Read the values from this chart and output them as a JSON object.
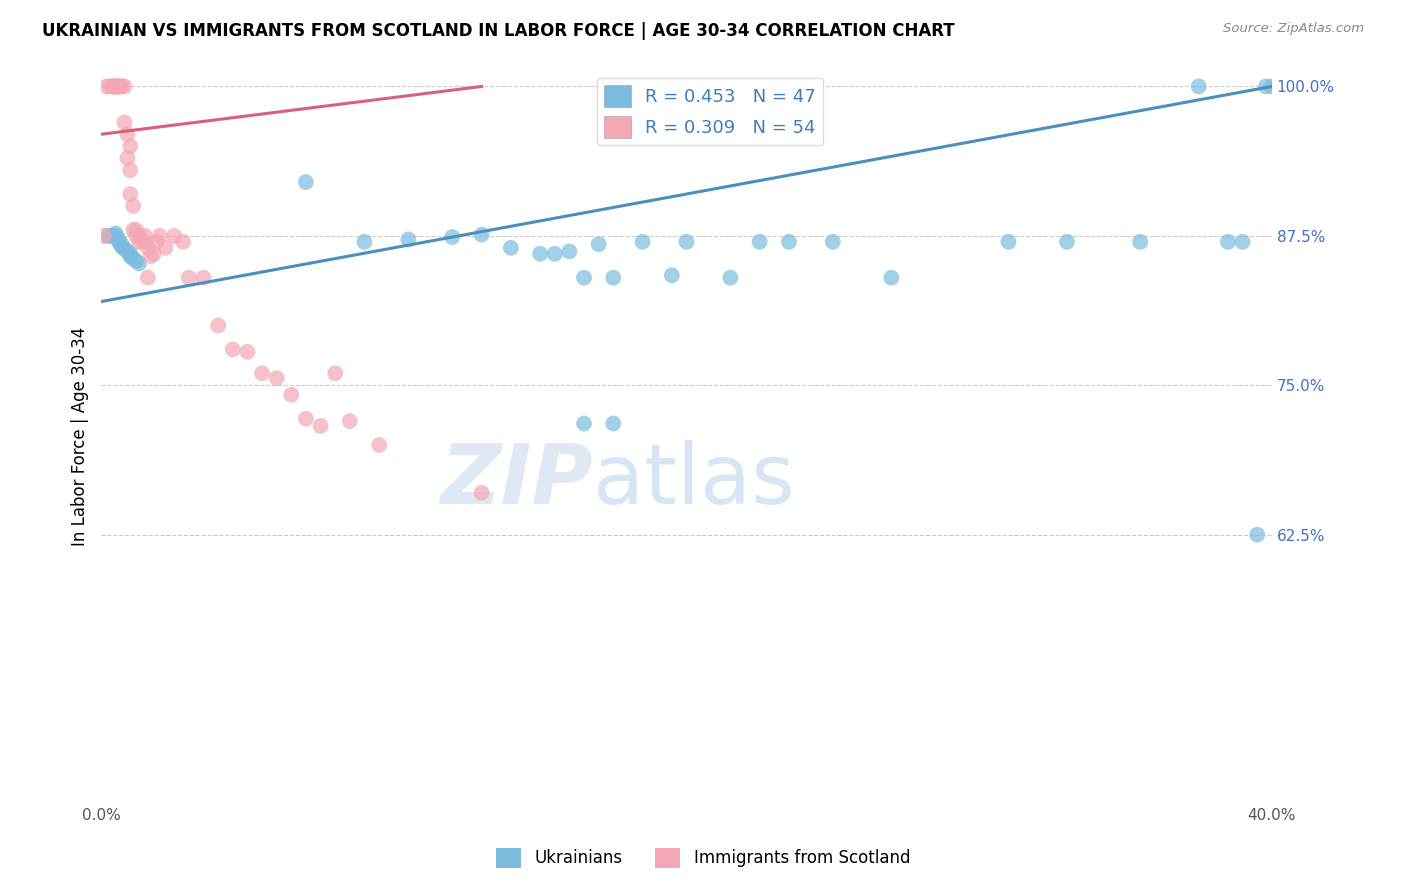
{
  "title": "UKRAINIAN VS IMMIGRANTS FROM SCOTLAND IN LABOR FORCE | AGE 30-34 CORRELATION CHART",
  "source": "Source: ZipAtlas.com",
  "ylabel": "In Labor Force | Age 30-34",
  "xmin": 0.0,
  "xmax": 0.4,
  "ymin": 0.4,
  "ymax": 1.015,
  "ytick_vals": [
    0.625,
    0.75,
    0.875,
    1.0
  ],
  "ytick_labels": [
    "62.5%",
    "75.0%",
    "87.5%",
    "100.0%"
  ],
  "xtick_vals": [
    0.0,
    0.05,
    0.1,
    0.15,
    0.2,
    0.25,
    0.3,
    0.35,
    0.4
  ],
  "xtick_labels": [
    "0.0%",
    "",
    "",
    "",
    "",
    "",
    "",
    "",
    "40.0%"
  ],
  "legend_R_blue": "R = 0.453",
  "legend_N_blue": "N = 47",
  "legend_R_pink": "R = 0.309",
  "legend_N_pink": "N = 54",
  "blue_color": "#7BBCDE",
  "pink_color": "#F4A7B5",
  "blue_line_color": "#4C8FBE",
  "pink_line_color": "#D9607A",
  "watermark": "ZIPatlas",
  "blue_x": [
    0.002,
    0.003,
    0.004,
    0.005,
    0.005,
    0.006,
    0.006,
    0.007,
    0.007,
    0.008,
    0.009,
    0.01,
    0.01,
    0.011,
    0.012,
    0.013,
    0.07,
    0.09,
    0.105,
    0.12,
    0.13,
    0.14,
    0.15,
    0.155,
    0.16,
    0.165,
    0.17,
    0.175,
    0.185,
    0.195,
    0.2,
    0.215,
    0.225,
    0.235,
    0.25,
    0.27,
    0.165,
    0.175,
    0.31,
    0.33,
    0.355,
    0.375,
    0.385,
    0.39,
    0.395,
    0.398,
    0.4
  ],
  "blue_y": [
    0.875,
    0.875,
    0.875,
    0.877,
    0.875,
    0.872,
    0.87,
    0.868,
    0.866,
    0.864,
    0.862,
    0.86,
    0.858,
    0.856,
    0.854,
    0.852,
    0.92,
    0.87,
    0.872,
    0.874,
    0.876,
    0.865,
    0.86,
    0.86,
    0.862,
    0.84,
    0.868,
    0.84,
    0.87,
    0.842,
    0.87,
    0.84,
    0.87,
    0.87,
    0.87,
    0.84,
    0.718,
    0.718,
    0.87,
    0.87,
    0.87,
    1.0,
    0.87,
    0.87,
    0.625,
    1.0,
    1.0
  ],
  "pink_x": [
    0.001,
    0.002,
    0.003,
    0.004,
    0.004,
    0.005,
    0.005,
    0.005,
    0.005,
    0.005,
    0.005,
    0.006,
    0.006,
    0.007,
    0.007,
    0.008,
    0.008,
    0.009,
    0.009,
    0.01,
    0.01,
    0.01,
    0.011,
    0.011,
    0.012,
    0.012,
    0.013,
    0.013,
    0.014,
    0.015,
    0.015,
    0.016,
    0.016,
    0.017,
    0.018,
    0.019,
    0.02,
    0.022,
    0.025,
    0.028,
    0.03,
    0.035,
    0.04,
    0.045,
    0.05,
    0.055,
    0.06,
    0.065,
    0.07,
    0.075,
    0.08,
    0.085,
    0.095,
    0.13
  ],
  "pink_y": [
    0.875,
    1.0,
    1.0,
    1.0,
    1.0,
    1.0,
    1.0,
    1.0,
    1.0,
    1.0,
    1.0,
    1.0,
    1.0,
    1.0,
    1.0,
    1.0,
    0.97,
    0.96,
    0.94,
    0.95,
    0.93,
    0.91,
    0.9,
    0.88,
    0.88,
    0.875,
    0.87,
    0.875,
    0.87,
    0.87,
    0.875,
    0.865,
    0.84,
    0.858,
    0.86,
    0.87,
    0.875,
    0.865,
    0.875,
    0.87,
    0.84,
    0.84,
    0.8,
    0.78,
    0.778,
    0.76,
    0.756,
    0.742,
    0.722,
    0.716,
    0.76,
    0.72,
    0.7,
    0.66
  ],
  "blue_line_x0": 0.0,
  "blue_line_y0": 0.82,
  "blue_line_x1": 0.4,
  "blue_line_y1": 1.0,
  "pink_line_x0": 0.0,
  "pink_line_y0": 0.96,
  "pink_line_x1": 0.13,
  "pink_line_y1": 1.0
}
